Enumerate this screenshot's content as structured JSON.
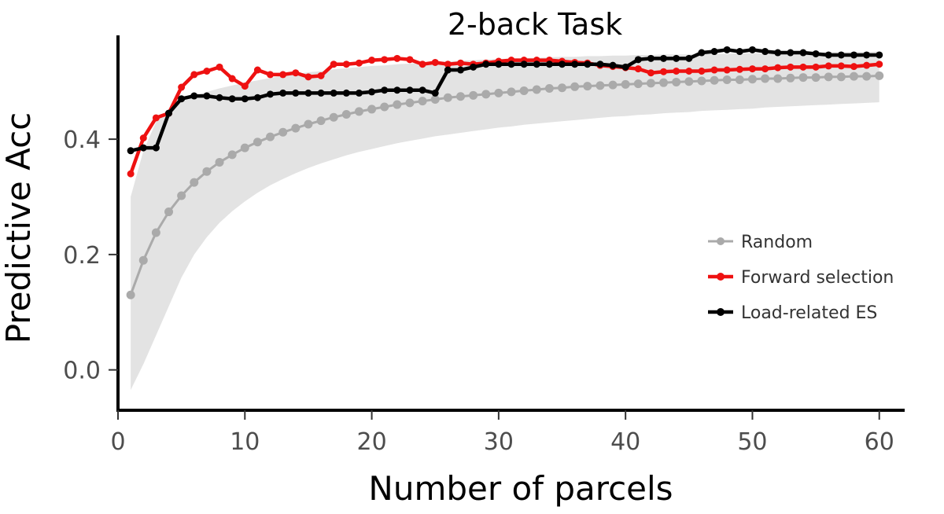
{
  "chart_data": {
    "type": "line",
    "title": "2-back Task",
    "xlabel": "Number of parcels",
    "ylabel": "Predictive Acc",
    "xlim": [
      0,
      62
    ],
    "ylim": [
      -0.07,
      0.58
    ],
    "xticks": [
      0,
      10,
      20,
      30,
      40,
      50,
      60
    ],
    "yticks": [
      0.0,
      0.2,
      0.4
    ],
    "xtick_labels": [
      "0",
      "10",
      "20",
      "30",
      "40",
      "50",
      "60"
    ],
    "ytick_labels": [
      "0.0",
      "0.2",
      "0.4"
    ],
    "grid": false,
    "legend_position": "right",
    "x": [
      1,
      2,
      3,
      4,
      5,
      6,
      7,
      8,
      9,
      10,
      11,
      12,
      13,
      14,
      15,
      16,
      17,
      18,
      19,
      20,
      21,
      22,
      23,
      24,
      25,
      26,
      27,
      28,
      29,
      30,
      31,
      32,
      33,
      34,
      35,
      36,
      37,
      38,
      39,
      40,
      41,
      42,
      43,
      44,
      45,
      46,
      47,
      48,
      49,
      50,
      51,
      52,
      53,
      54,
      55,
      56,
      57,
      58,
      59,
      60
    ],
    "series": [
      {
        "name": "Random",
        "color": "#aaaaaa",
        "values": [
          0.13,
          0.19,
          0.238,
          0.274,
          0.302,
          0.325,
          0.344,
          0.36,
          0.373,
          0.385,
          0.395,
          0.404,
          0.412,
          0.419,
          0.426,
          0.432,
          0.438,
          0.443,
          0.448,
          0.452,
          0.456,
          0.46,
          0.463,
          0.466,
          0.469,
          0.472,
          0.474,
          0.476,
          0.478,
          0.48,
          0.482,
          0.484,
          0.486,
          0.488,
          0.489,
          0.491,
          0.492,
          0.493,
          0.494,
          0.495,
          0.496,
          0.497,
          0.498,
          0.499,
          0.5,
          0.501,
          0.502,
          0.503,
          0.503,
          0.504,
          0.505,
          0.505,
          0.506,
          0.507,
          0.507,
          0.508,
          0.508,
          0.509,
          0.509,
          0.51
        ],
        "band_upper": [
          0.3,
          0.38,
          0.43,
          0.45,
          0.465,
          0.475,
          0.482,
          0.488,
          0.493,
          0.498,
          0.502,
          0.506,
          0.51,
          0.513,
          0.516,
          0.518,
          0.521,
          0.523,
          0.525,
          0.527,
          0.528,
          0.53,
          0.531,
          0.533,
          0.534,
          0.535,
          0.536,
          0.537,
          0.538,
          0.539,
          0.54,
          0.541,
          0.541,
          0.542,
          0.543,
          0.543,
          0.544,
          0.544,
          0.545,
          0.545,
          0.546,
          0.546,
          0.547,
          0.547,
          0.547,
          0.548,
          0.548,
          0.548,
          0.549,
          0.549,
          0.549,
          0.55,
          0.55,
          0.55,
          0.55,
          0.551,
          0.551,
          0.551,
          0.551,
          0.552
        ],
        "band_lower": [
          -0.035,
          0.01,
          0.06,
          0.11,
          0.16,
          0.2,
          0.23,
          0.255,
          0.275,
          0.292,
          0.307,
          0.32,
          0.331,
          0.341,
          0.35,
          0.358,
          0.365,
          0.372,
          0.378,
          0.383,
          0.388,
          0.393,
          0.397,
          0.401,
          0.405,
          0.408,
          0.411,
          0.414,
          0.417,
          0.42,
          0.422,
          0.425,
          0.427,
          0.429,
          0.431,
          0.433,
          0.435,
          0.437,
          0.439,
          0.44,
          0.442,
          0.443,
          0.445,
          0.446,
          0.447,
          0.449,
          0.45,
          0.451,
          0.452,
          0.453,
          0.455,
          0.456,
          0.457,
          0.458,
          0.459,
          0.46,
          0.461,
          0.462,
          0.463,
          0.464
        ]
      },
      {
        "name": "Forward selection",
        "color": "#ee1111",
        "values": [
          0.34,
          0.402,
          0.437,
          0.445,
          0.49,
          0.512,
          0.518,
          0.525,
          0.505,
          0.492,
          0.52,
          0.512,
          0.512,
          0.515,
          0.508,
          0.51,
          0.53,
          0.53,
          0.532,
          0.537,
          0.538,
          0.54,
          0.538,
          0.53,
          0.533,
          0.53,
          0.532,
          0.53,
          0.532,
          0.535,
          0.537,
          0.537,
          0.537,
          0.537,
          0.535,
          0.533,
          0.532,
          0.528,
          0.526,
          0.524,
          0.522,
          0.515,
          0.517,
          0.518,
          0.518,
          0.518,
          0.52,
          0.52,
          0.521,
          0.522,
          0.522,
          0.524,
          0.525,
          0.525,
          0.525,
          0.527,
          0.527,
          0.526,
          0.528,
          0.53
        ]
      },
      {
        "name": "Load-related ES",
        "color": "#000000",
        "values": [
          0.38,
          0.385,
          0.385,
          0.445,
          0.47,
          0.475,
          0.475,
          0.472,
          0.47,
          0.47,
          0.472,
          0.478,
          0.48,
          0.48,
          0.48,
          0.48,
          0.48,
          0.48,
          0.48,
          0.482,
          0.485,
          0.485,
          0.485,
          0.485,
          0.48,
          0.52,
          0.52,
          0.525,
          0.53,
          0.53,
          0.53,
          0.53,
          0.53,
          0.53,
          0.53,
          0.53,
          0.53,
          0.53,
          0.528,
          0.525,
          0.538,
          0.54,
          0.54,
          0.54,
          0.54,
          0.55,
          0.552,
          0.555,
          0.552,
          0.555,
          0.552,
          0.55,
          0.55,
          0.55,
          0.548,
          0.546,
          0.546,
          0.546,
          0.546,
          0.546
        ]
      }
    ]
  }
}
